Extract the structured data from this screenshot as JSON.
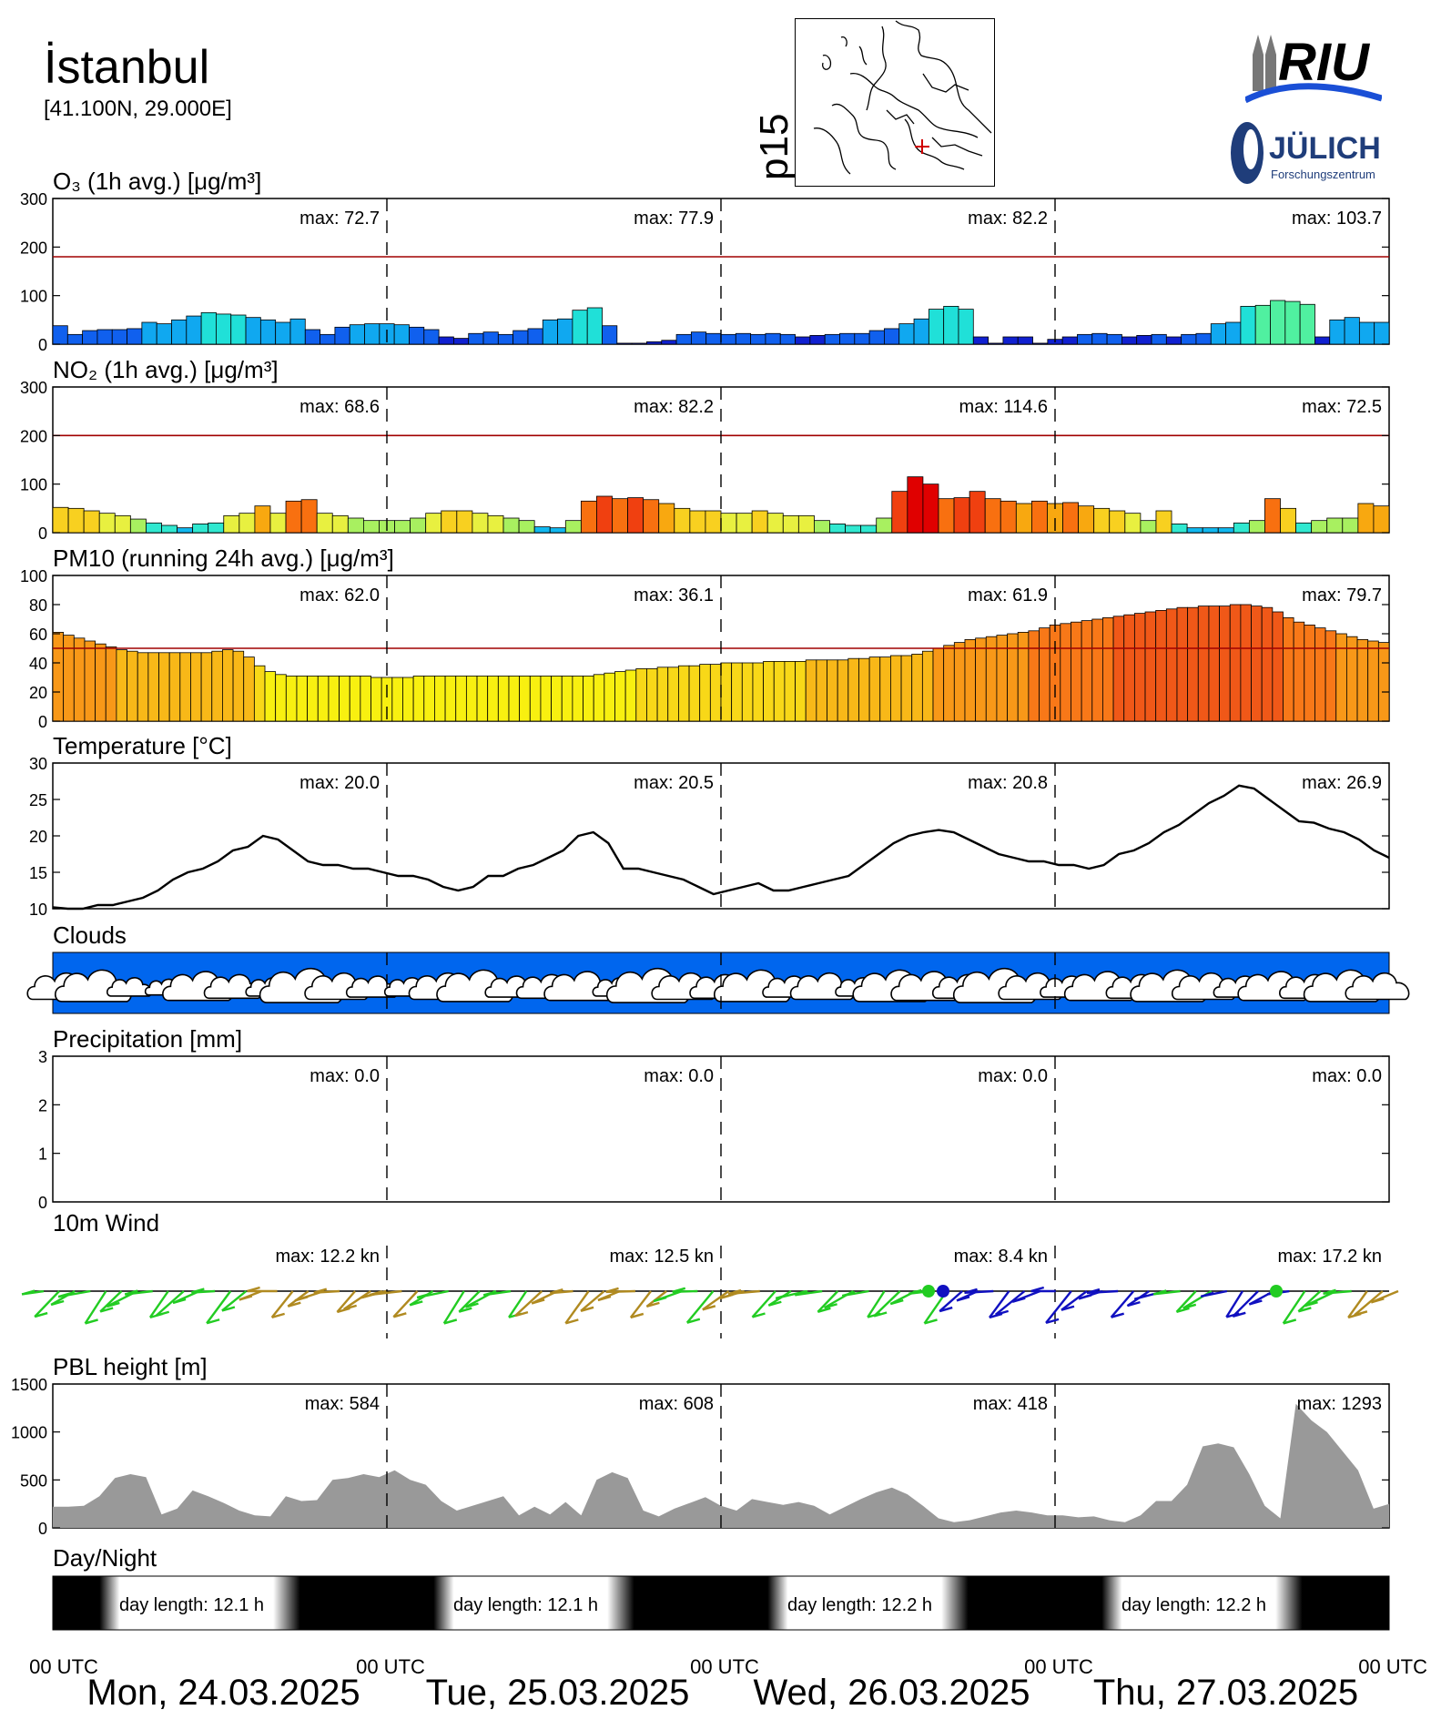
{
  "header": {
    "city": "İstanbul",
    "coords": "[41.100N, 29.000E]",
    "map_label": "p15",
    "logo_riu": "RIU",
    "logo_julich": "JÜLICH",
    "logo_julich_sub": "Forschungszentrum"
  },
  "colors": {
    "threshold": "#a00000",
    "clouds_bg": "#0066ee",
    "pbl_fill": "#999999"
  },
  "chart_data": [
    {
      "type": "bar",
      "title": "O₃ (1h avg.) [μg/m³]",
      "ylim": [
        0,
        300
      ],
      "yticks": [
        "0",
        "100",
        "200",
        "300"
      ],
      "threshold": 180,
      "max_labels": [
        "max:  72.7",
        "max:  77.9",
        "max:  82.2",
        "max: 103.7"
      ],
      "values": [
        38,
        20,
        28,
        30,
        30,
        32,
        45,
        42,
        50,
        58,
        65,
        62,
        60,
        55,
        50,
        45,
        52,
        30,
        20,
        35,
        40,
        42,
        42,
        40,
        35,
        30,
        15,
        12,
        22,
        25,
        20,
        28,
        32,
        50,
        52,
        70,
        75,
        38,
        2,
        2,
        5,
        8,
        20,
        25,
        22,
        20,
        22,
        20,
        22,
        20,
        15,
        18,
        20,
        22,
        22,
        28,
        32,
        42,
        52,
        72,
        78,
        72,
        15,
        2,
        15,
        15,
        2,
        10,
        15,
        20,
        22,
        20,
        15,
        18,
        20,
        15,
        20,
        22,
        42,
        45,
        78,
        80,
        90,
        88,
        82,
        15,
        50,
        55,
        45,
        45
      ]
    },
    {
      "type": "bar",
      "title": "NO₂ (1h avg.) [μg/m³]",
      "ylim": [
        0,
        300
      ],
      "yticks": [
        "0",
        "100",
        "200",
        "300"
      ],
      "threshold": 200,
      "max_labels": [
        "max:  68.6",
        "max:  82.2",
        "max: 114.6",
        "max:  72.5"
      ],
      "values": [
        52,
        50,
        45,
        40,
        35,
        28,
        20,
        15,
        10,
        18,
        20,
        35,
        40,
        55,
        40,
        65,
        68,
        40,
        35,
        30,
        25,
        25,
        25,
        30,
        40,
        45,
        45,
        40,
        35,
        30,
        25,
        12,
        10,
        25,
        65,
        75,
        70,
        72,
        68,
        60,
        50,
        45,
        45,
        40,
        40,
        45,
        40,
        35,
        35,
        25,
        18,
        15,
        15,
        30,
        85,
        115,
        100,
        70,
        72,
        85,
        70,
        65,
        60,
        65,
        60,
        62,
        55,
        50,
        45,
        40,
        25,
        45,
        18,
        10,
        10,
        10,
        20,
        25,
        70,
        50,
        20,
        25,
        30,
        30,
        60,
        55
      ]
    },
    {
      "type": "bar",
      "title": "PM10 (running 24h avg.) [μg/m³]",
      "ylim": [
        0,
        100
      ],
      "yticks": [
        "0",
        "20",
        "40",
        "60",
        "80",
        "100"
      ],
      "threshold": 50,
      "max_labels": [
        "max:  62.0",
        "max:  36.1",
        "max:  61.9",
        "max:  79.7"
      ],
      "values": [
        61,
        59,
        57,
        55,
        53,
        51,
        49,
        48,
        47,
        47,
        47,
        47,
        47,
        47,
        47,
        48,
        49,
        48,
        44,
        38,
        34,
        32,
        31,
        31,
        31,
        31,
        31,
        31,
        31,
        31,
        30,
        30,
        30,
        30,
        31,
        31,
        31,
        31,
        31,
        31,
        31,
        31,
        31,
        31,
        31,
        31,
        31,
        31,
        31,
        31,
        31,
        32,
        33,
        34,
        35,
        36,
        36,
        37,
        37,
        38,
        38,
        39,
        39,
        40,
        40,
        40,
        40,
        41,
        41,
        41,
        41,
        42,
        42,
        42,
        42,
        43,
        43,
        44,
        44,
        45,
        45,
        46,
        48,
        50,
        52,
        54,
        56,
        57,
        58,
        59,
        60,
        61,
        62,
        64,
        66,
        67,
        68,
        69,
        70,
        71,
        72,
        73,
        74,
        75,
        76,
        77,
        78,
        78,
        79,
        79,
        79,
        80,
        80,
        79,
        78,
        75,
        71,
        68,
        66,
        64,
        62,
        60,
        58,
        56,
        55,
        54
      ]
    },
    {
      "type": "line",
      "title": "Temperature [°C]",
      "ylim": [
        10,
        30
      ],
      "yticks": [
        "10",
        "15",
        "20",
        "25",
        "30"
      ],
      "max_labels": [
        "max:  20.0",
        "max:  20.5",
        "max:  20.8",
        "max:  26.9"
      ],
      "values": [
        10.2,
        10,
        10,
        10.5,
        10.5,
        11,
        11.5,
        12.5,
        14,
        15,
        15.5,
        16.5,
        18,
        18.5,
        20,
        19.5,
        18,
        16.5,
        16,
        16,
        15.5,
        15.5,
        15,
        14.5,
        14.5,
        14,
        13,
        12.5,
        13,
        14.5,
        14.5,
        15.5,
        16,
        17,
        18,
        20,
        20.5,
        19,
        15.5,
        15.5,
        15,
        14.5,
        14,
        13,
        12,
        12.5,
        13,
        13.5,
        12.5,
        12.5,
        13,
        13.5,
        14,
        14.5,
        16,
        17.5,
        19,
        20,
        20.5,
        20.8,
        20.5,
        19.5,
        18.5,
        17.5,
        17,
        16.5,
        16.5,
        16,
        16,
        15.5,
        16,
        17.5,
        18,
        19,
        20.5,
        21.5,
        23,
        24.5,
        25.5,
        26.9,
        26.5,
        25,
        23.5,
        22,
        21.8,
        21,
        20.5,
        19.5,
        18,
        17
      ]
    },
    {
      "type": "clouds",
      "title": "Clouds"
    },
    {
      "type": "bar",
      "title": "Precipitation [mm]",
      "ylim": [
        0,
        3
      ],
      "yticks": [
        "0",
        "1",
        "2",
        "3"
      ],
      "max_labels": [
        "max:   0.0",
        "max:   0.0",
        "max:   0.0",
        "max:   0.0"
      ],
      "values": []
    },
    {
      "type": "wind",
      "title": "10m Wind",
      "max_labels": [
        "max:  12.2 kn",
        "max:  12.5 kn",
        "max:   8.4 kn",
        "max:  17.2 kn"
      ]
    },
    {
      "type": "area",
      "title": "PBL height [m]",
      "ylim": [
        0,
        1500
      ],
      "yticks": [
        "0",
        "500",
        "1000",
        "1500"
      ],
      "max_labels": [
        "max:   584",
        "max:   608",
        "max:   418",
        "max:  1293"
      ],
      "values": [
        220,
        220,
        230,
        330,
        520,
        560,
        530,
        140,
        200,
        390,
        330,
        260,
        180,
        130,
        120,
        330,
        280,
        290,
        500,
        520,
        560,
        530,
        600,
        500,
        450,
        280,
        180,
        230,
        280,
        330,
        130,
        220,
        140,
        270,
        130,
        500,
        580,
        520,
        180,
        120,
        200,
        260,
        320,
        230,
        180,
        300,
        270,
        240,
        270,
        230,
        140,
        220,
        300,
        370,
        420,
        350,
        230,
        100,
        60,
        80,
        120,
        160,
        180,
        160,
        130,
        130,
        110,
        120,
        80,
        60,
        130,
        280,
        280,
        450,
        850,
        880,
        840,
        560,
        230,
        100,
        1293,
        1120,
        1000,
        800,
        600,
        200,
        250
      ]
    },
    {
      "type": "daynight",
      "title": "Day/Night",
      "labels": [
        "day length:  12.1 h",
        "day length:  12.1 h",
        "day length:  12.2 h",
        "day length:  12.2 h"
      ]
    }
  ],
  "xaxis": {
    "utc_labels": [
      "00 UTC",
      "00 UTC",
      "00 UTC",
      "00 UTC",
      "00 UTC"
    ],
    "dates": [
      "Mon, 24.03.2025",
      "Tue, 25.03.2025",
      "Wed, 26.03.2025",
      "Thu, 27.03.2025"
    ]
  }
}
